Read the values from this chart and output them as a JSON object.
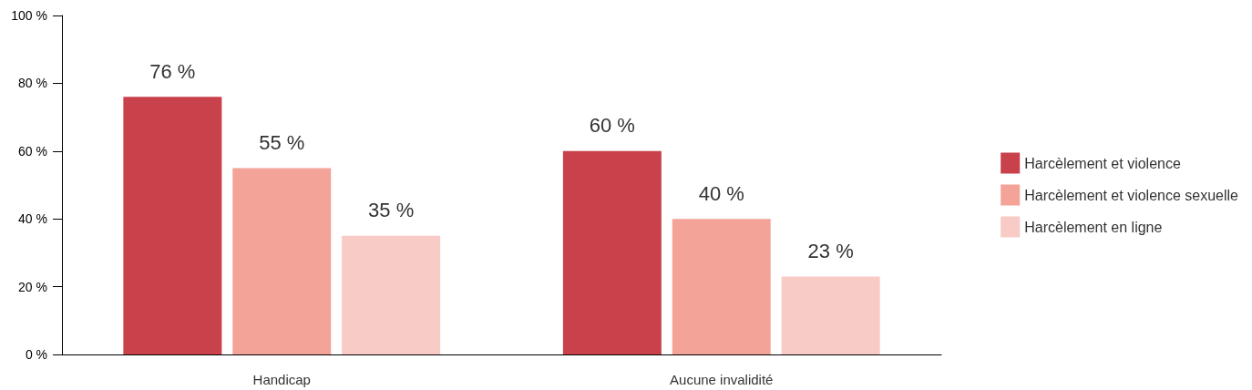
{
  "chart_data": {
    "type": "bar",
    "categories": [
      "Handicap",
      "Aucune invalidité"
    ],
    "series": [
      {
        "name": "Harcèlement et violence",
        "color": "#c8414b",
        "values": [
          76,
          60
        ],
        "value_labels": [
          "76 %",
          "60 %"
        ]
      },
      {
        "name": "Harcèlement et violence sexuelle",
        "color": "#f4a398",
        "values": [
          55,
          40
        ],
        "value_labels": [
          "55 %",
          "40 %"
        ]
      },
      {
        "name": "Harcèlement en ligne",
        "color": "#f8cbc6",
        "values": [
          35,
          23
        ],
        "value_labels": [
          "35 %",
          "23 %"
        ]
      }
    ],
    "ylim": [
      0,
      100
    ],
    "yticks": [
      {
        "value": 0,
        "label": "0 %"
      },
      {
        "value": 20,
        "label": "20 %"
      },
      {
        "value": 40,
        "label": "40 %"
      },
      {
        "value": 60,
        "label": "60 %"
      },
      {
        "value": 80,
        "label": "80 %"
      },
      {
        "value": 100,
        "label": "100 %"
      }
    ],
    "grid": false,
    "legend": "right"
  }
}
